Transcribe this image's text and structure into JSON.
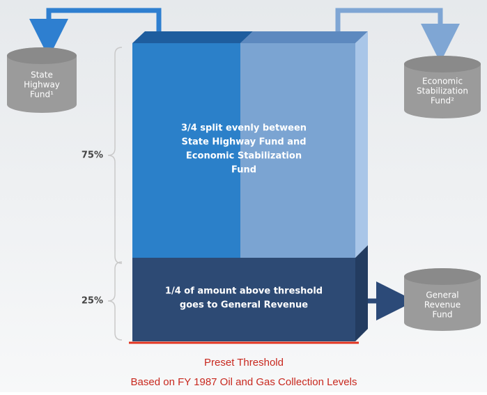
{
  "funds": [
    {
      "lines": [
        "State",
        "Highway",
        "Fund¹"
      ]
    },
    {
      "lines": [
        "Economic",
        "Stabilization",
        "Fund²"
      ]
    },
    {
      "lines": [
        "General",
        "Revenue",
        "Fund"
      ]
    }
  ],
  "shares": [
    "75%",
    "25%"
  ],
  "upper_text": [
    "3/4 split evenly between",
    "State Highway Fund and",
    "Economic Stabilization",
    "Fund"
  ],
  "lower_text": [
    "1/4 of amount above threshold",
    "goes to General Revenue"
  ],
  "caption": [
    "Preset Threshold",
    "Based on FY 1987 Oil and Gas Collection Levels"
  ]
}
